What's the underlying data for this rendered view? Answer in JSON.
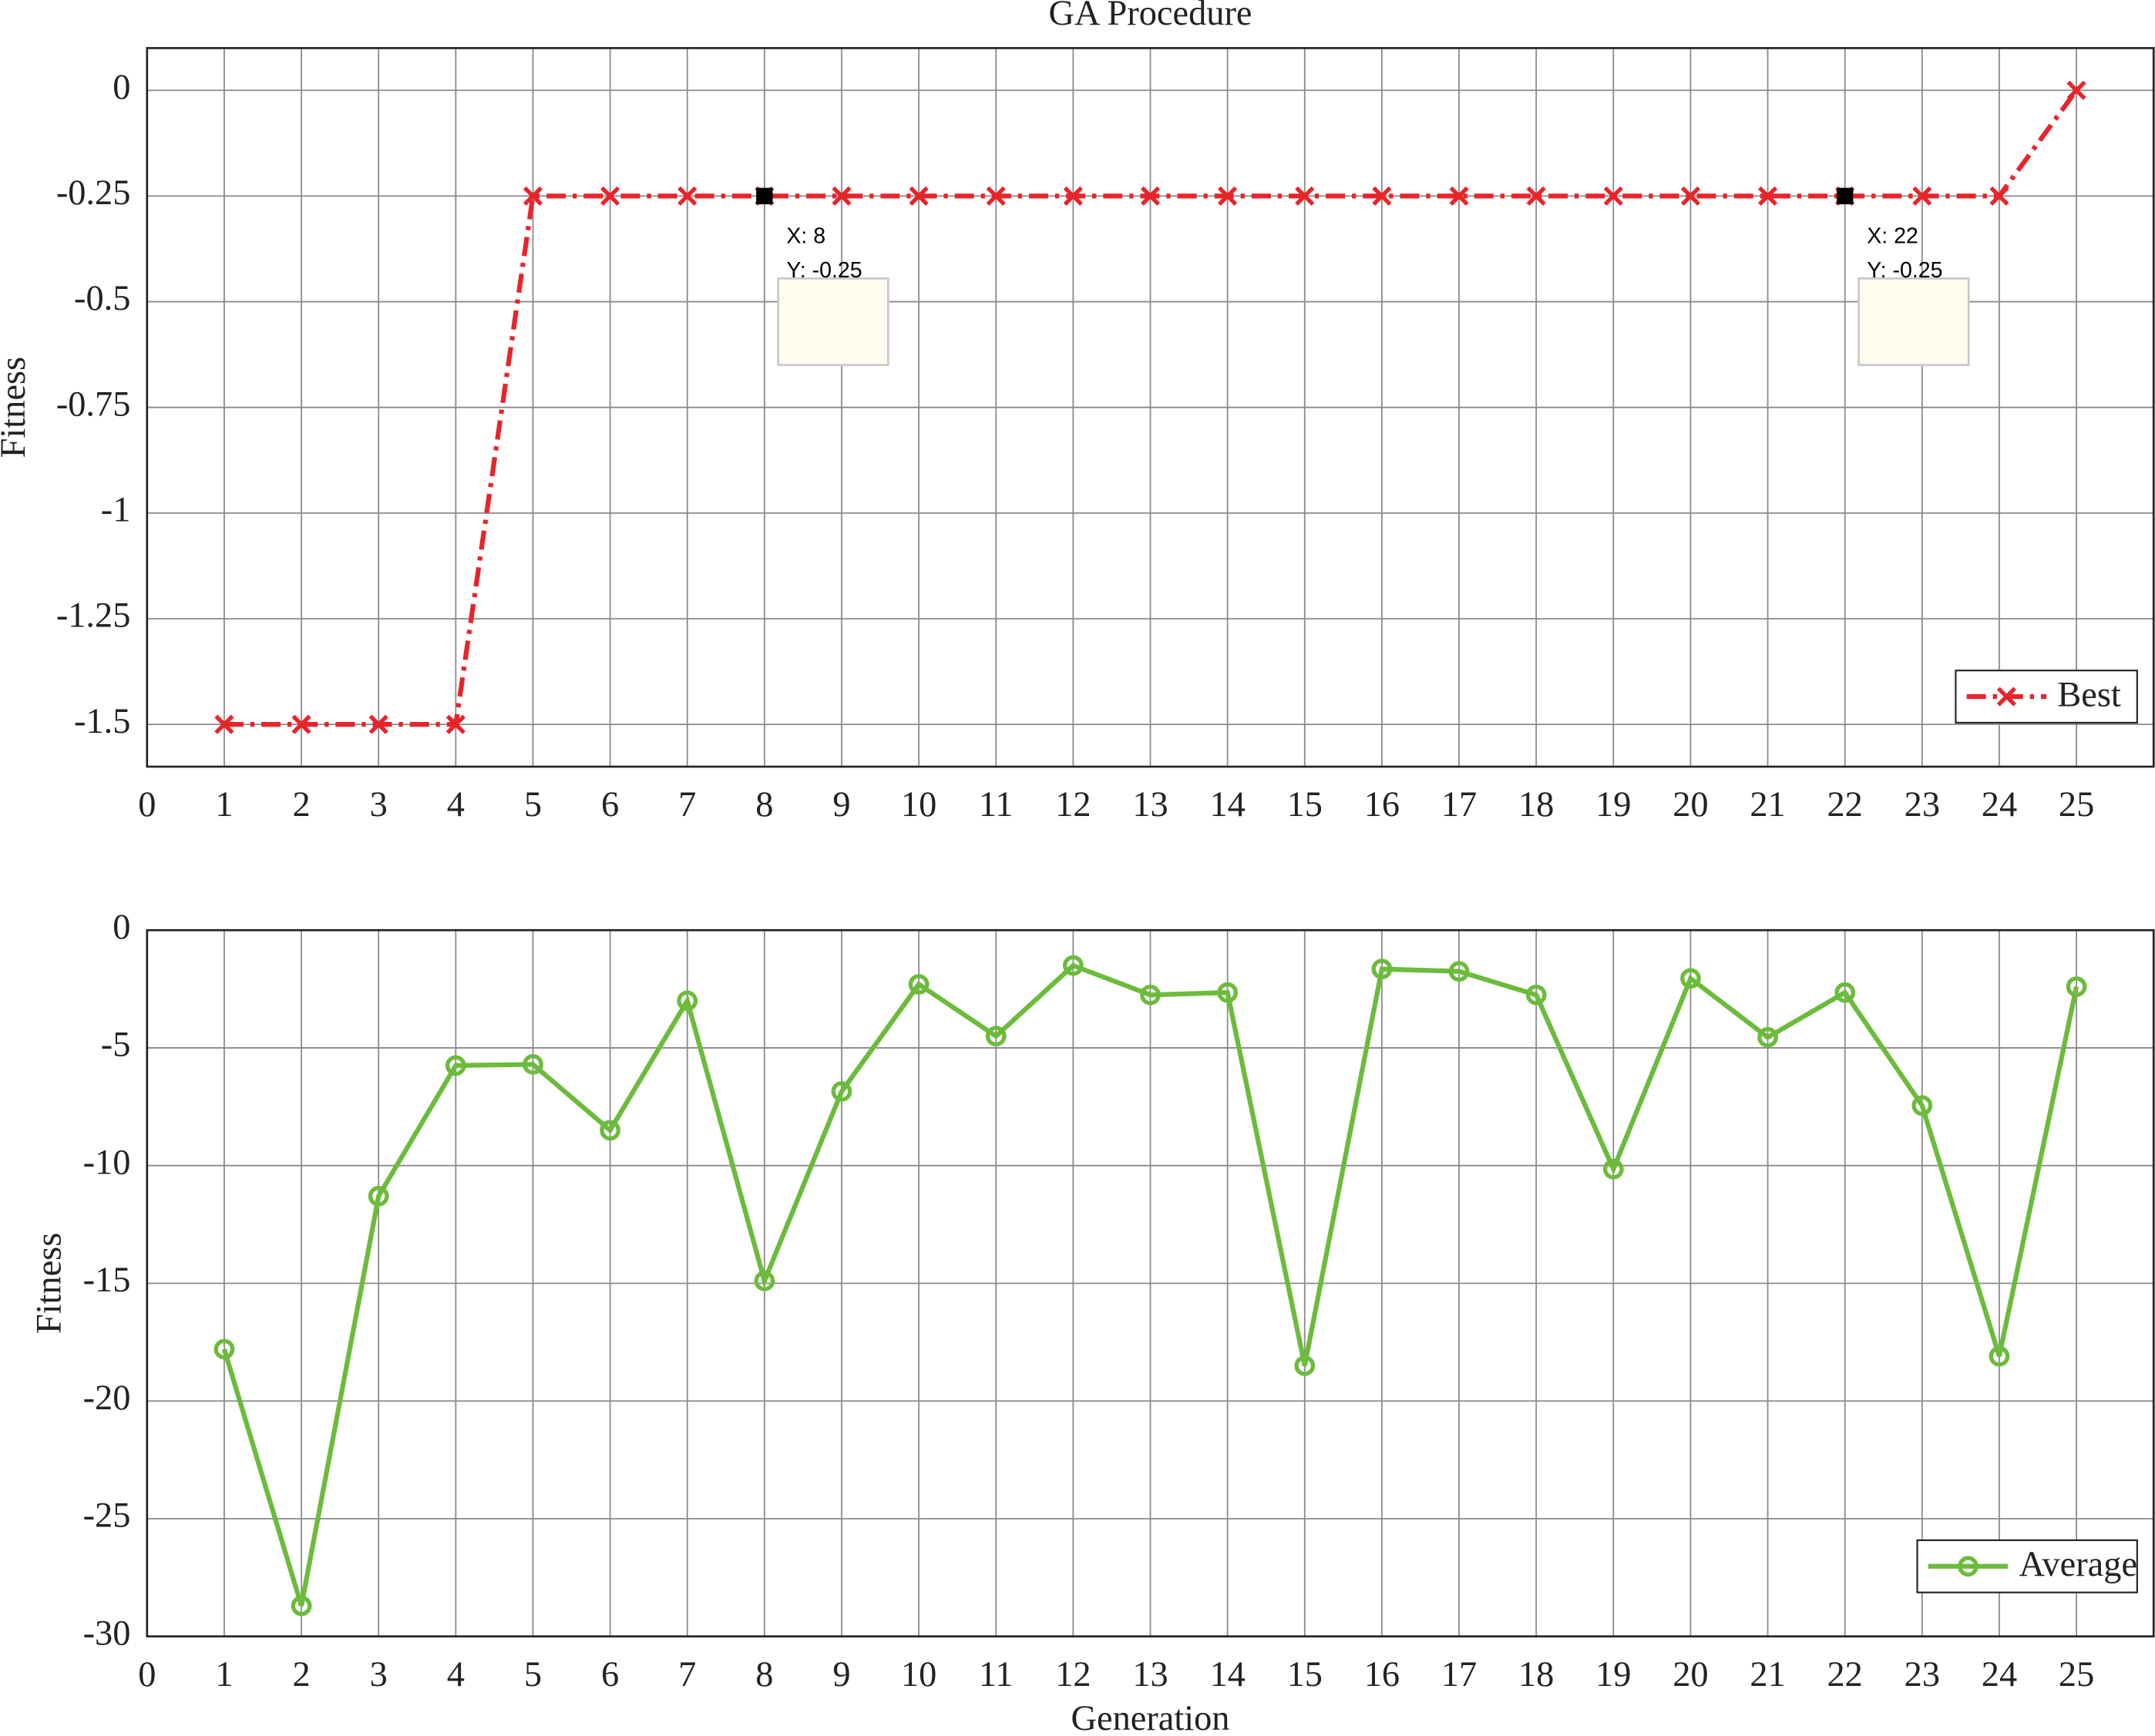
{
  "chart_data": [
    {
      "type": "line",
      "title": "GA Procedure",
      "y_label": "Fitness",
      "x": [
        1,
        2,
        3,
        4,
        5,
        6,
        7,
        8,
        9,
        10,
        11,
        12,
        13,
        14,
        15,
        16,
        17,
        18,
        19,
        20,
        21,
        22,
        23,
        24,
        25
      ],
      "series": [
        {
          "name": "Best",
          "color": "#e8242b",
          "marker": "x",
          "line_style": "dashdot",
          "values": [
            -1.5,
            -1.5,
            -1.5,
            -1.5,
            -0.25,
            -0.25,
            -0.25,
            -0.25,
            -0.25,
            -0.25,
            -0.25,
            -0.25,
            -0.25,
            -0.25,
            -0.25,
            -0.25,
            -0.25,
            -0.25,
            -0.25,
            -0.25,
            -0.25,
            -0.25,
            -0.25,
            -0.25,
            0
          ]
        }
      ],
      "xlim": [
        0,
        26
      ],
      "xticks": [
        0,
        1,
        2,
        3,
        4,
        5,
        6,
        7,
        8,
        9,
        10,
        11,
        12,
        13,
        14,
        15,
        16,
        17,
        18,
        19,
        20,
        21,
        22,
        23,
        24,
        25
      ],
      "ylim": [
        -1.6,
        0.1
      ],
      "yticks": [
        -1.5,
        -1.25,
        -1,
        -0.75,
        -0.5,
        -0.25,
        0
      ],
      "grid": true,
      "legend": "lower right",
      "annotations": [
        {
          "x": 8,
          "y": -0.25,
          "lines": [
            "X: 8",
            "Y: -0.25"
          ]
        },
        {
          "x": 22,
          "y": -0.25,
          "lines": [
            "X: 22",
            "Y: -0.25"
          ]
        }
      ]
    },
    {
      "type": "line",
      "y_label": "Fitness",
      "x_label": "Generation",
      "x": [
        1,
        2,
        3,
        4,
        5,
        6,
        7,
        8,
        9,
        10,
        11,
        12,
        13,
        14,
        15,
        16,
        17,
        18,
        19,
        20,
        21,
        22,
        23,
        24,
        25
      ],
      "series": [
        {
          "name": "Average",
          "color": "#6cbb3c",
          "marker": "o",
          "line_style": "solid",
          "values": [
            -17.8,
            -28.7,
            -11.3,
            -5.75,
            -5.7,
            -8.5,
            -3.0,
            -14.9,
            -6.85,
            -2.3,
            -4.5,
            -1.5,
            -2.75,
            -2.65,
            -18.5,
            -1.65,
            -1.75,
            -2.75,
            -10.15,
            -2.05,
            -4.55,
            -2.65,
            -7.45,
            -18.1,
            -2.4
          ]
        }
      ],
      "xlim": [
        0,
        26
      ],
      "xticks": [
        0,
        1,
        2,
        3,
        4,
        5,
        6,
        7,
        8,
        9,
        10,
        11,
        12,
        13,
        14,
        15,
        16,
        17,
        18,
        19,
        20,
        21,
        22,
        23,
        24,
        25
      ],
      "ylim": [
        -30,
        0
      ],
      "yticks": [
        -30,
        -25,
        -20,
        -15,
        -10,
        -5,
        0
      ],
      "grid": true,
      "legend": "lower right"
    }
  ]
}
